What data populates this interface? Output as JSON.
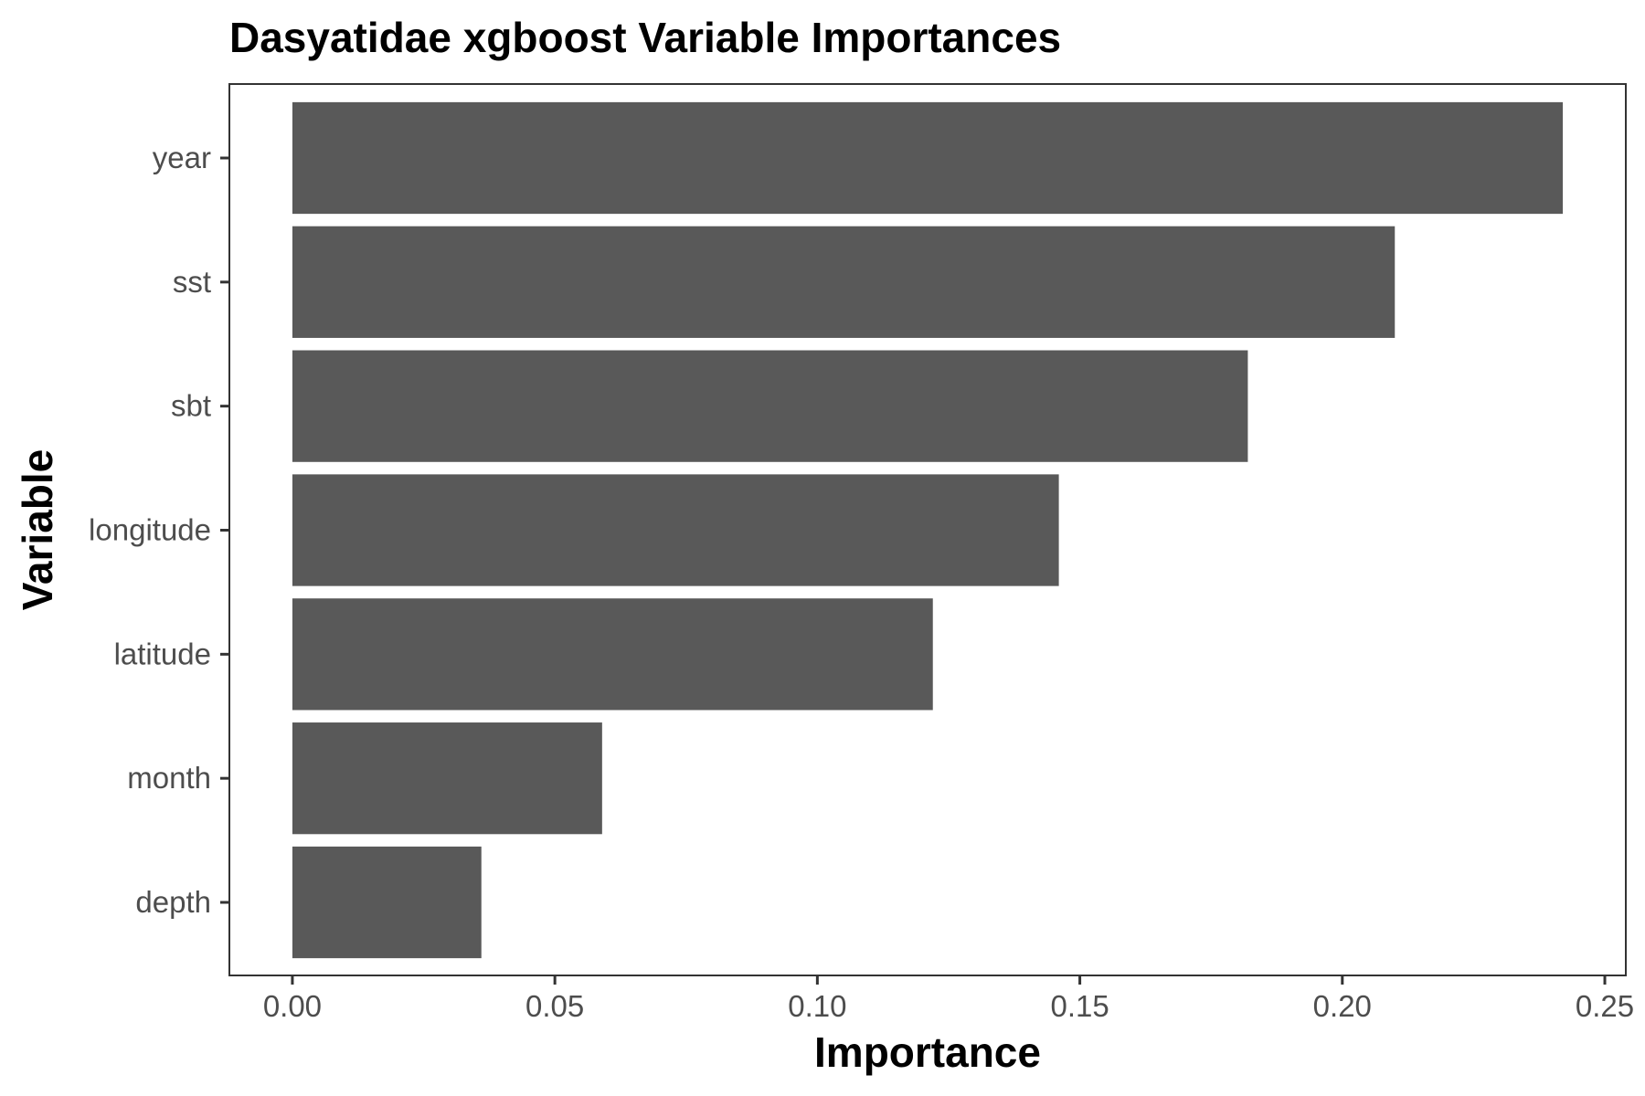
{
  "chart_data": {
    "type": "bar",
    "orientation": "horizontal",
    "title": "Dasyatidae xgboost Variable Importances",
    "xlabel": "Importance",
    "ylabel": "Variable",
    "categories": [
      "year",
      "sst",
      "sbt",
      "longitude",
      "latitude",
      "month",
      "depth"
    ],
    "values": [
      0.242,
      0.21,
      0.182,
      0.146,
      0.122,
      0.059,
      0.036
    ],
    "xlim": [
      -0.012,
      0.254
    ],
    "xticks": [
      0.0,
      0.05,
      0.1,
      0.15,
      0.2,
      0.25
    ],
    "xtick_labels": [
      "0.00",
      "0.05",
      "0.10",
      "0.15",
      "0.20",
      "0.25"
    ],
    "grid": false,
    "legend": "none",
    "bar_color": "#595959",
    "panel_border_color": "#333333"
  }
}
